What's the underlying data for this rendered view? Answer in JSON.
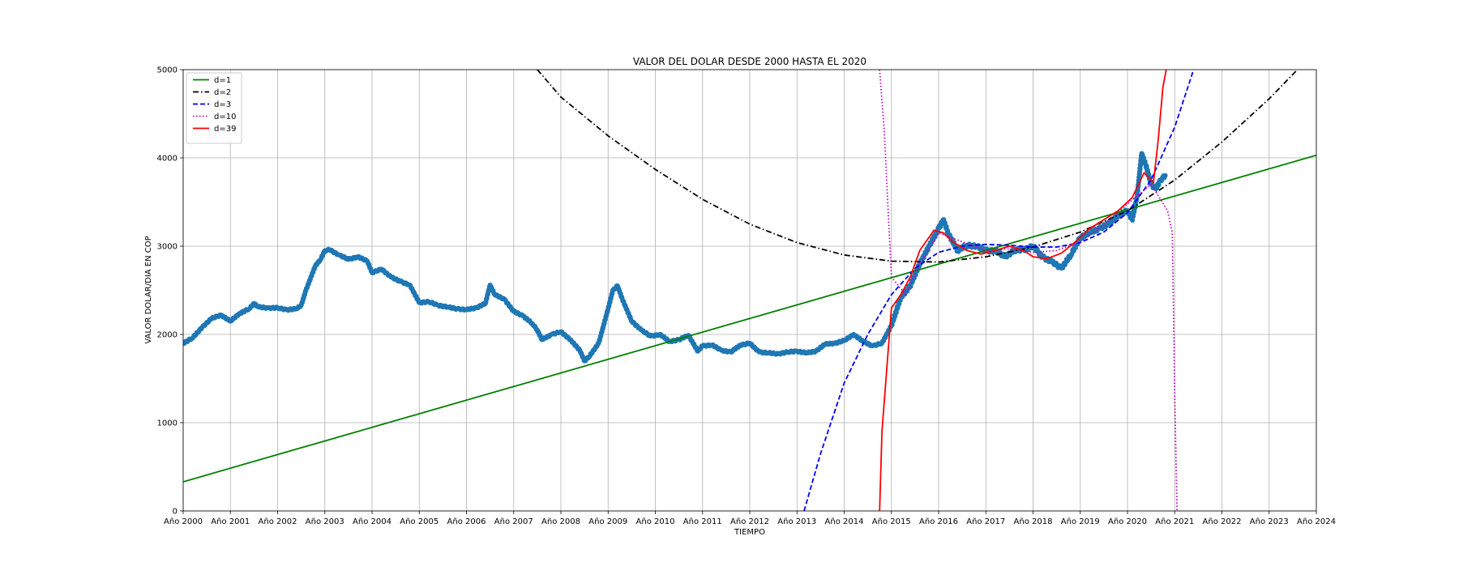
{
  "chart_data": {
    "type": "line",
    "title": "VALOR DEL DOLAR DESDE 2000 HASTA EL 2020",
    "xlabel": "TIEMPO",
    "ylabel": "VALOR DOLAR/DIA EN COP",
    "xlim": [
      2000,
      2024
    ],
    "ylim": [
      0,
      5000
    ],
    "grid": true,
    "legend_position": "top-left",
    "x_tick_labels": [
      "Año 2000",
      "Año 2001",
      "Año 2002",
      "Año 2003",
      "Año 2004",
      "Año 2005",
      "Año 2006",
      "Año 2007",
      "Año 2008",
      "Año 2009",
      "Año 2010",
      "Año 2011",
      "Año 2012",
      "Año 2013",
      "Año 2014",
      "Año 2015",
      "Año 2016",
      "Año 2017",
      "Año 2018",
      "Año 2019",
      "Año 2020",
      "Año 2021",
      "Año 2022",
      "Año 2023",
      "Año 2024"
    ],
    "y_ticks": [
      0,
      1000,
      2000,
      3000,
      4000,
      5000
    ],
    "observed": {
      "style": "scatter",
      "color": "#1f77b4",
      "x": [
        2000.0,
        2000.2,
        2000.4,
        2000.6,
        2000.8,
        2001.0,
        2001.2,
        2001.4,
        2001.5,
        2001.6,
        2001.8,
        2002.0,
        2002.2,
        2002.4,
        2002.5,
        2002.6,
        2002.8,
        2002.9,
        2003.0,
        2003.1,
        2003.3,
        2003.5,
        2003.7,
        2003.9,
        2004.0,
        2004.2,
        2004.4,
        2004.6,
        2004.8,
        2005.0,
        2005.2,
        2005.4,
        2005.6,
        2005.8,
        2006.0,
        2006.2,
        2006.4,
        2006.5,
        2006.6,
        2006.8,
        2007.0,
        2007.2,
        2007.4,
        2007.5,
        2007.6,
        2007.8,
        2008.0,
        2008.2,
        2008.4,
        2008.5,
        2008.6,
        2008.8,
        2009.0,
        2009.1,
        2009.2,
        2009.3,
        2009.5,
        2009.7,
        2009.9,
        2010.1,
        2010.3,
        2010.5,
        2010.7,
        2010.9,
        2011.0,
        2011.2,
        2011.4,
        2011.6,
        2011.8,
        2012.0,
        2012.2,
        2012.4,
        2012.6,
        2012.8,
        2013.0,
        2013.2,
        2013.4,
        2013.6,
        2013.8,
        2014.0,
        2014.2,
        2014.4,
        2014.6,
        2014.8,
        2015.0,
        2015.2,
        2015.4,
        2015.6,
        2015.8,
        2016.0,
        2016.1,
        2016.2,
        2016.4,
        2016.6,
        2016.8,
        2017.0,
        2017.2,
        2017.4,
        2017.6,
        2017.8,
        2018.0,
        2018.2,
        2018.4,
        2018.6,
        2018.8,
        2019.0,
        2019.2,
        2019.4,
        2019.6,
        2019.8,
        2020.0,
        2020.1,
        2020.2,
        2020.3,
        2020.4,
        2020.5,
        2020.6,
        2020.7,
        2020.8
      ],
      "y": [
        1900,
        1960,
        2080,
        2180,
        2220,
        2150,
        2240,
        2290,
        2350,
        2310,
        2300,
        2300,
        2280,
        2290,
        2330,
        2500,
        2780,
        2840,
        2950,
        2960,
        2900,
        2850,
        2880,
        2830,
        2700,
        2740,
        2650,
        2600,
        2560,
        2360,
        2370,
        2330,
        2310,
        2290,
        2280,
        2300,
        2350,
        2560,
        2450,
        2400,
        2260,
        2210,
        2120,
        2050,
        1940,
        2000,
        2030,
        1940,
        1820,
        1700,
        1750,
        1900,
        2290,
        2500,
        2550,
        2400,
        2150,
        2050,
        1980,
        2000,
        1920,
        1940,
        1990,
        1810,
        1870,
        1880,
        1820,
        1800,
        1880,
        1900,
        1800,
        1790,
        1780,
        1800,
        1810,
        1790,
        1810,
        1890,
        1900,
        1930,
        2000,
        1920,
        1870,
        1900,
        2100,
        2420,
        2550,
        2800,
        3000,
        3200,
        3300,
        3150,
        2950,
        3010,
        3000,
        2950,
        2950,
        2880,
        2950,
        2960,
        3000,
        2880,
        2820,
        2750,
        2900,
        3100,
        3150,
        3200,
        3250,
        3350,
        3400,
        3300,
        3550,
        4050,
        3900,
        3700,
        3650,
        3750,
        3800
      ]
    },
    "series": [
      {
        "name": "d=1",
        "color": "#008000",
        "dash": "solid",
        "x": [
          2000,
          2024
        ],
        "y": [
          330,
          4030
        ]
      },
      {
        "name": "d=2",
        "color": "#000000",
        "dash": "dashdot",
        "x": [
          2007.5,
          2008,
          2009,
          2010,
          2011,
          2012,
          2013,
          2014,
          2015,
          2016,
          2017,
          2018,
          2019,
          2020,
          2021,
          2022,
          2023,
          2023.6
        ],
        "y": [
          5000,
          4690,
          4250,
          3870,
          3530,
          3250,
          3040,
          2900,
          2830,
          2820,
          2880,
          2990,
          3160,
          3400,
          3750,
          4180,
          4670,
          5000
        ]
      },
      {
        "name": "d=3",
        "color": "#0000ff",
        "dash": "dashed",
        "x": [
          2013.15,
          2013.5,
          2014,
          2014.5,
          2015,
          2015.5,
          2016,
          2016.5,
          2017,
          2017.5,
          2018,
          2018.5,
          2019,
          2019.5,
          2020,
          2020.5,
          2021,
          2021.4
        ],
        "y": [
          0,
          650,
          1450,
          2000,
          2450,
          2750,
          2930,
          3000,
          3020,
          3010,
          2990,
          2990,
          3040,
          3160,
          3380,
          3750,
          4350,
          5000
        ]
      },
      {
        "name": "d=10",
        "color": "#bf00bf",
        "dash": "dotted",
        "x": [
          2014.75,
          2014.85,
          2014.95,
          2015.0,
          2015.3,
          2015.6,
          2016,
          2016.5,
          2017,
          2017.5,
          2018,
          2018.5,
          2019,
          2019.5,
          2020,
          2020.5,
          2020.85,
          2020.95,
          2021.0,
          2021.05
        ],
        "y": [
          5000,
          4300,
          3200,
          2650,
          2450,
          2800,
          3150,
          3050,
          2950,
          2970,
          2930,
          2950,
          3050,
          3250,
          3480,
          3700,
          3400,
          3150,
          1300,
          0
        ]
      },
      {
        "name": "d=39",
        "color": "#ff0000",
        "dash": "solid",
        "x": [
          2014.75,
          2014.8,
          2015.0,
          2015.2,
          2015.4,
          2015.6,
          2015.9,
          2016.1,
          2016.3,
          2016.6,
          2016.9,
          2017.2,
          2017.5,
          2017.8,
          2018.0,
          2018.3,
          2018.6,
          2018.9,
          2019.2,
          2019.5,
          2019.8,
          2020.1,
          2020.35,
          2020.55,
          2020.65,
          2020.75,
          2020.82
        ],
        "y": [
          0,
          900,
          2300,
          2450,
          2650,
          2950,
          3180,
          3150,
          3050,
          2950,
          2910,
          2950,
          3000,
          2950,
          2880,
          2860,
          2920,
          3050,
          3200,
          3300,
          3400,
          3550,
          3830,
          3720,
          4200,
          4800,
          5000
        ]
      }
    ]
  }
}
